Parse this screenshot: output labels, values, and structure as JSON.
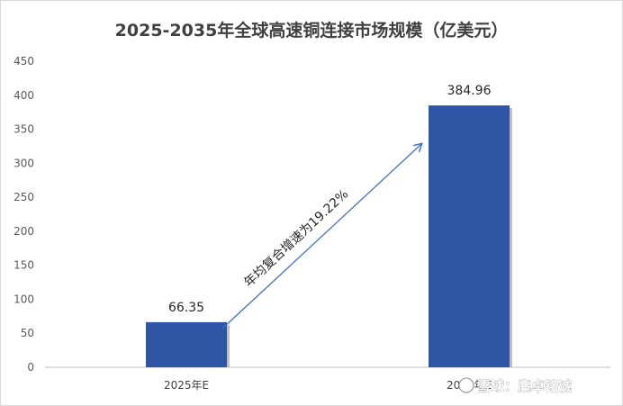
{
  "chart_data": {
    "type": "bar",
    "title": "2025-2035年全球高速铜连接市场规模（亿美元）",
    "categories": [
      "2025年E",
      "2035年E"
    ],
    "values": [
      66.35,
      384.96
    ],
    "value_labels": [
      "66.35",
      "384.96"
    ],
    "y_ticks": [
      "0",
      "50",
      "100",
      "150",
      "200",
      "250",
      "300",
      "350",
      "400",
      "450"
    ],
    "ylim": [
      0,
      450
    ],
    "grid": false,
    "legend": "none",
    "bar_color": "#2e55a3",
    "arrow_color": "#4472c4",
    "annotation": "年均复合增速为19.22%"
  },
  "watermark": {
    "text": "雪球：麋卓铭诚"
  }
}
